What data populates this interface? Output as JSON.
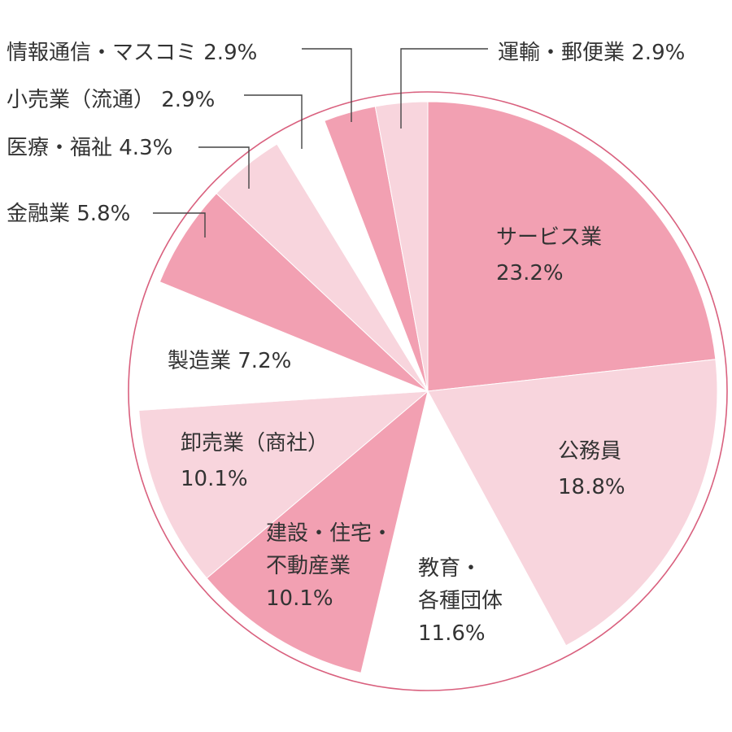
{
  "chart_data": {
    "type": "pie",
    "title": "",
    "start": "12 o'clock",
    "direction": "clockwise",
    "slices": [
      {
        "label": "サービス業",
        "value": 23.2,
        "display": "23.2%",
        "color": "#f2a0b2",
        "label_style": "inside"
      },
      {
        "label": "公務員",
        "value": 18.8,
        "display": "18.8%",
        "color": "#f8d5dd",
        "label_style": "inside"
      },
      {
        "label": "教育・各種団体",
        "value": 11.6,
        "display": "11.6%",
        "color": "#ffffff",
        "label_style": "inside"
      },
      {
        "label": "建設・住宅・不動産業",
        "value": 10.1,
        "display": "10.1%",
        "color": "#f2a0b2",
        "label_style": "inside"
      },
      {
        "label": "卸売業（商社）",
        "value": 10.1,
        "display": "10.1%",
        "color": "#f8d5dd",
        "label_style": "inside"
      },
      {
        "label": "製造業",
        "value": 7.2,
        "display": "7.2%",
        "color": "#ffffff",
        "label_style": "inside"
      },
      {
        "label": "金融業",
        "value": 5.8,
        "display": "5.8%",
        "color": "#f2a0b2",
        "label_style": "callout"
      },
      {
        "label": "医療・福祉",
        "value": 4.3,
        "display": "4.3%",
        "color": "#f8d5dd",
        "label_style": "callout"
      },
      {
        "label": "小売業（流通）",
        "value": 2.9,
        "display": "2.9%",
        "color": "#ffffff",
        "label_style": "callout"
      },
      {
        "label": "情報通信・マスコミ",
        "value": 2.9,
        "display": "2.9%",
        "color": "#f2a0b2",
        "label_style": "callout"
      },
      {
        "label": "運輸・郵便業",
        "value": 2.9,
        "display": "2.9%",
        "color": "#f8d5dd",
        "label_style": "callout"
      }
    ],
    "label_lines": [
      [
        "サービス業",
        "23.2%"
      ],
      [
        "公務員",
        "18.8%"
      ],
      [
        "教育・",
        "各種団体",
        "11.6%"
      ],
      [
        "建設・住宅・",
        "不動産業",
        "10.1%"
      ],
      [
        "卸売業（商社）",
        "10.1%"
      ],
      [
        "製造業 7.2%"
      ],
      [
        "金融業 5.8%"
      ],
      [
        "医療・福祉 4.3%"
      ],
      [
        "小売業（流通） 2.9%"
      ],
      [
        "情報通信・マスコミ 2.9%"
      ],
      [
        "運輸・郵便業 2.9%"
      ]
    ],
    "outline_color": "#d9607e",
    "legend": "none",
    "grid": false
  }
}
